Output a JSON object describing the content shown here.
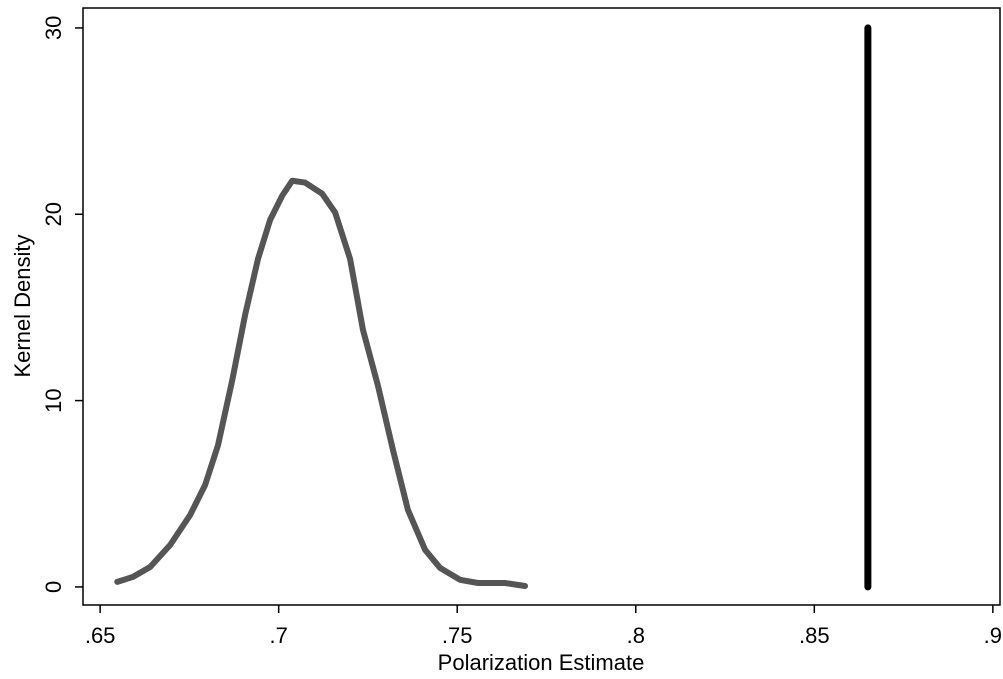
{
  "chart_data": {
    "type": "line",
    "xlabel": "Polarization Estimate",
    "ylabel": "Kernel Density",
    "xlim": [
      0.6452,
      0.902
    ],
    "ylim": [
      -0.97,
      31.07
    ],
    "xticks": [
      {
        "value": 0.65,
        "label": ".65"
      },
      {
        "value": 0.7,
        "label": ".7"
      },
      {
        "value": 0.75,
        "label": ".75"
      },
      {
        "value": 0.8,
        "label": ".8"
      },
      {
        "value": 0.85,
        "label": ".85"
      },
      {
        "value": 0.9,
        "label": ".9"
      }
    ],
    "yticks": [
      0,
      10,
      20,
      30
    ],
    "series": [
      {
        "color": "#555555",
        "width": 6,
        "x": [
          0.6548,
          0.6592,
          0.664,
          0.6696,
          0.6752,
          0.6794,
          0.683,
          0.687,
          0.6906,
          0.6942,
          0.6976,
          0.701,
          0.7038,
          0.7074,
          0.7122,
          0.7158,
          0.72,
          0.7236,
          0.7278,
          0.732,
          0.7362,
          0.741,
          0.7452,
          0.7508,
          0.7558,
          0.7634,
          0.769
        ],
        "values": [
          0.27,
          0.54,
          1.07,
          2.25,
          3.86,
          5.47,
          7.6,
          11.1,
          14.6,
          17.6,
          19.7,
          21.0,
          21.8,
          21.7,
          21.1,
          20.1,
          17.6,
          13.8,
          10.8,
          7.35,
          4.13,
          1.99,
          1.02,
          0.38,
          0.21,
          0.21,
          0.05
        ]
      },
      {
        "color": "#000000",
        "width": 7,
        "x": [
          0.865,
          0.865
        ],
        "values": [
          0,
          30
        ]
      }
    ]
  }
}
